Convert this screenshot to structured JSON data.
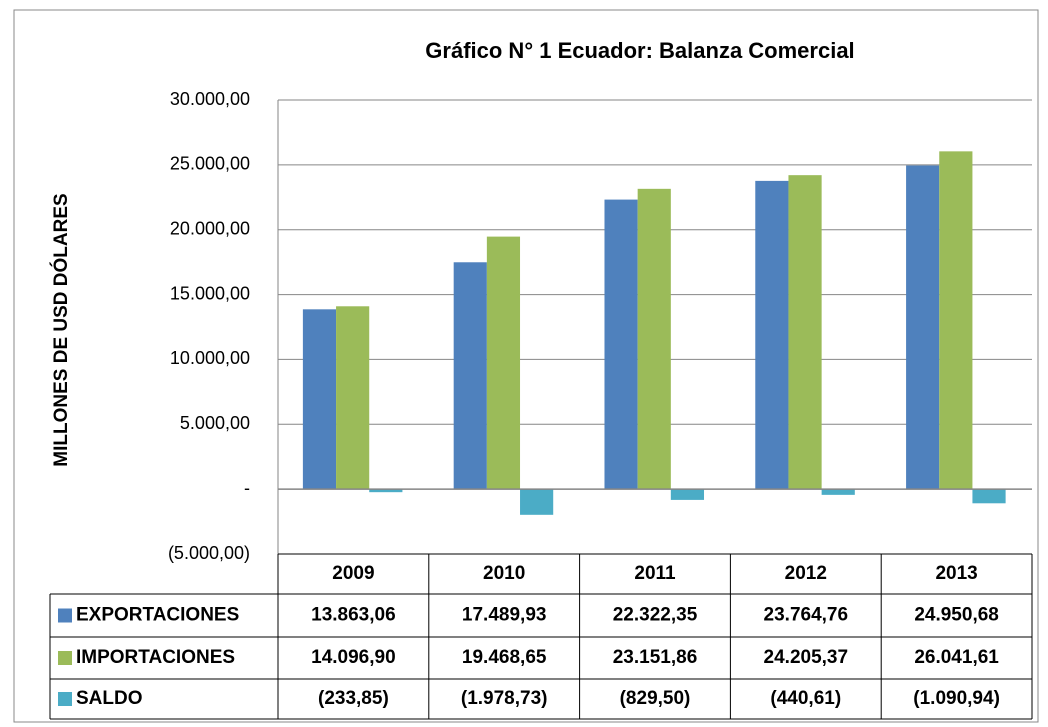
{
  "chart_data": {
    "type": "bar",
    "title": "Gráfico N° 1 Ecuador: Balanza Comercial",
    "y_label": "MILLONES DE USD DÓLARES",
    "categories": [
      "2009",
      "2010",
      "2011",
      "2012",
      "2013"
    ],
    "series": [
      {
        "name": "EXPORTACIONES",
        "color": "#4f81bd",
        "values": [
          13863.06,
          17489.93,
          22322.35,
          23764.76,
          24950.68
        ],
        "value_labels": [
          "13.863,06",
          "17.489,93",
          "22.322,35",
          "23.764,76",
          "24.950,68"
        ]
      },
      {
        "name": "IMPORTACIONES",
        "color": "#9bbb59",
        "values": [
          14096.9,
          19468.65,
          23151.86,
          24205.37,
          26041.61
        ],
        "value_labels": [
          "14.096,90",
          "19.468,65",
          "23.151,86",
          "24.205,37",
          "26.041,61"
        ]
      },
      {
        "name": "SALDO",
        "color": "#4bacc6",
        "values": [
          -233.85,
          -1978.73,
          -829.5,
          -440.61,
          -1090.94
        ],
        "value_labels": [
          "(233,85)",
          "(1.978,73)",
          "(829,50)",
          "(440,61)",
          "(1.090,94)"
        ]
      }
    ],
    "ylim": [
      -5000,
      30000
    ],
    "yticks": [
      {
        "value": -5000,
        "label": "(5.000,00)"
      },
      {
        "value": 0,
        "label": "-"
      },
      {
        "value": 5000,
        "label": "5.000,00"
      },
      {
        "value": 10000,
        "label": "10.000,00"
      },
      {
        "value": 15000,
        "label": "15.000,00"
      },
      {
        "value": 20000,
        "label": "20.000,00"
      },
      {
        "value": 25000,
        "label": "25.000,00"
      },
      {
        "value": 30000,
        "label": "30.000,00"
      }
    ],
    "grid": true
  }
}
